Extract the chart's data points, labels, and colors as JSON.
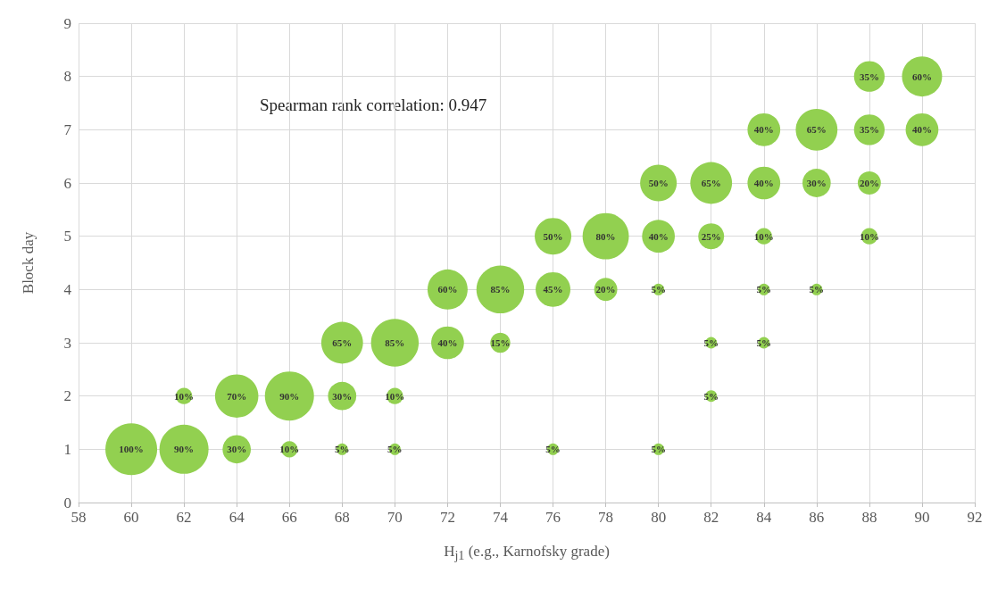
{
  "chart_data": {
    "type": "bubble",
    "xlabel": "H$_{j1}$ (e.g., Karnofsky grade)",
    "ylabel": "Block day",
    "annotations": [
      "Spearman rank correlation: 0.947"
    ],
    "xlim": [
      58,
      92
    ],
    "xticks": [
      58,
      60,
      62,
      64,
      66,
      68,
      70,
      72,
      74,
      76,
      78,
      80,
      82,
      84,
      86,
      88,
      90,
      92
    ],
    "ylim": [
      0,
      9
    ],
    "yticks": [
      0,
      1,
      2,
      3,
      4,
      5,
      6,
      7,
      8,
      9
    ],
    "grid": true,
    "series": [
      {
        "color": "#92d050",
        "x": [
          60,
          62,
          62,
          64,
          64,
          66,
          66,
          68,
          68,
          68,
          70,
          70,
          70,
          72,
          72,
          74,
          74,
          76,
          76,
          76,
          78,
          78,
          80,
          80,
          80,
          80,
          82,
          82,
          82,
          82,
          84,
          84,
          84,
          84,
          84,
          86,
          86,
          86,
          88,
          88,
          88,
          88,
          90,
          90
        ],
        "values": [
          1,
          1,
          2,
          1,
          2,
          1,
          2,
          1,
          2,
          3,
          1,
          2,
          3,
          3,
          4,
          3,
          4,
          1,
          4,
          5,
          4,
          5,
          1,
          4,
          5,
          6,
          2,
          3,
          5,
          6,
          3,
          4,
          5,
          6,
          7,
          4,
          6,
          7,
          5,
          6,
          7,
          8,
          7,
          8
        ],
        "sizes": [
          1,
          0.9,
          0.1,
          0.3,
          0.7,
          0.1,
          0.9,
          0.05,
          0.3,
          0.65,
          0.05,
          0.1,
          0.85,
          0.4,
          0.6,
          0.15,
          0.85,
          0.05,
          0.45,
          0.5,
          0.2,
          0.8,
          0.05,
          0.05,
          0.4,
          0.5,
          0.05,
          0.05,
          0.25,
          0.65,
          0.05,
          0.05,
          0.1,
          0.4,
          0.4,
          0.05,
          0.3,
          0.65,
          0.1,
          0.2,
          0.35,
          0.35,
          0.4,
          0.6
        ],
        "value_labels": [
          "100%",
          "90%",
          "10%",
          "30%",
          "70%",
          "10%",
          "90%",
          "5%",
          "30%",
          "65%",
          "5%",
          "10%",
          "85%",
          "40%",
          "60%",
          "15%",
          "85%",
          "5%",
          "45%",
          "50%",
          "20%",
          "80%",
          "5%",
          "5%",
          "40%",
          "50%",
          "5%",
          "5%",
          "25%",
          "65%",
          "5%",
          "5%",
          "10%",
          "40%",
          "40%",
          "5%",
          "30%",
          "65%",
          "10%",
          "20%",
          "35%",
          "35%",
          "40%",
          "60%"
        ]
      }
    ]
  }
}
